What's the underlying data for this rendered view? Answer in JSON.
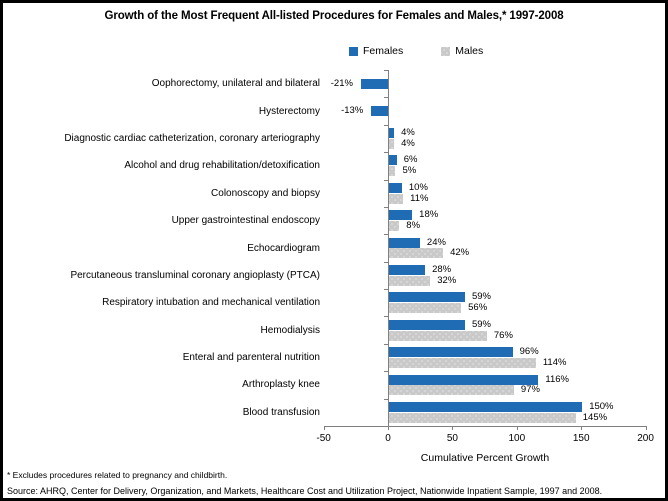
{
  "title": "Growth of the Most Frequent All-listed Procedures for Females and Males,* 1997-2008",
  "legend": {
    "females_label": "Females",
    "males_label": "Males"
  },
  "colors": {
    "females": "#1F6CB5",
    "males": "#C9C9C9",
    "axis": "#808080",
    "text": "#000000"
  },
  "chart_data": {
    "type": "bar",
    "orientation": "horizontal",
    "title": "Growth of the Most Frequent All-listed Procedures for Females and Males,* 1997-2008",
    "xlabel": "Cumulative Percent Growth",
    "ylabel": "",
    "xlim": [
      -50,
      200
    ],
    "x_ticks": [
      -50,
      0,
      50,
      100,
      150,
      200
    ],
    "grid": false,
    "legend_position": "top",
    "value_label_format": "{v}%",
    "categories": [
      "Oophorectomy, unilateral and bilateral",
      "Hysterectomy",
      "Diagnostic cardiac catheterization, coronary arteriography",
      "Alcohol and drug rehabilitation/detoxification",
      "Colonoscopy and biopsy",
      "Upper gastrointestinal endoscopy",
      "Echocardiogram",
      "Percutaneous transluminal coronary angioplasty (PTCA)",
      "Respiratory intubation and mechanical ventilation",
      "Hemodialysis",
      "Enteral and parenteral nutrition",
      "Arthroplasty knee",
      "Blood transfusion"
    ],
    "series": [
      {
        "name": "Females",
        "values": [
          -21,
          -13,
          4,
          6,
          10,
          18,
          24,
          28,
          59,
          59,
          96,
          116,
          150
        ]
      },
      {
        "name": "Males",
        "values": [
          null,
          null,
          4,
          5,
          11,
          8,
          42,
          32,
          56,
          76,
          114,
          97,
          145
        ]
      }
    ]
  },
  "footnotes": {
    "note": "* Excludes procedures related to pregnancy and childbirth.",
    "source": "Source: AHRQ, Center for Delivery, Organization, and Markets, Healthcare Cost and Utilization Project, Nationwide Inpatient Sample, 1997 and 2008."
  }
}
